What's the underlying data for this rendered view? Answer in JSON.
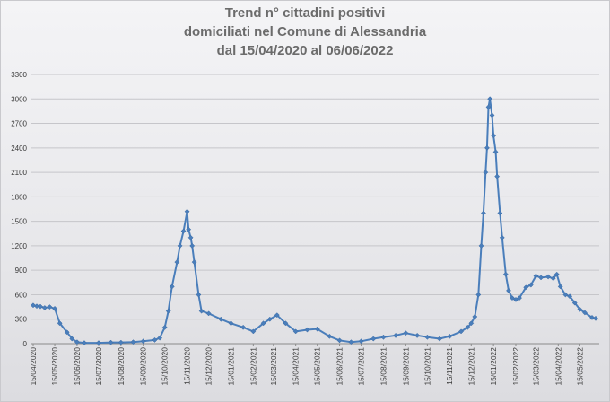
{
  "chart_data": {
    "type": "line",
    "title": [
      "Trend n° cittadini positivi",
      "domiciliati nel Comune di Alessandria",
      "dal 15/04/2020 al 06/06/2022"
    ],
    "xlabel": "",
    "ylabel": "",
    "ylim": [
      0,
      3300
    ],
    "yticks": [
      0,
      300,
      600,
      900,
      1200,
      1500,
      1800,
      2100,
      2400,
      2700,
      3000,
      3300
    ],
    "xticks": [
      "15/04/2020",
      "15/05/2020",
      "15/06/2020",
      "15/07/2020",
      "15/08/2020",
      "15/09/2020",
      "15/10/2020",
      "15/11/2020",
      "15/12/2020",
      "15/01/2021",
      "15/02/2021",
      "15/03/2021",
      "15/04/2021",
      "15/05/2021",
      "15/06/2021",
      "15/07/2021",
      "15/08/2021",
      "15/09/2021",
      "15/10/2021",
      "15/11/2021",
      "15/12/2021",
      "15/01/2022",
      "15/02/2022",
      "15/03/2022",
      "15/04/2022",
      "15/05/2022"
    ],
    "grid": "horizontal",
    "legend": "none",
    "series_color": "#4a7ebb",
    "series": [
      {
        "x": [
          "15/04/2020",
          "20/04/2020",
          "25/04/2020",
          "01/05/2020",
          "08/05/2020",
          "15/05/2020",
          "22/05/2020",
          "01/06/2020",
          "08/06/2020",
          "15/06/2020",
          "25/06/2020",
          "15/07/2020",
          "01/08/2020",
          "15/08/2020",
          "01/09/2020",
          "15/09/2020",
          "01/10/2020",
          "08/10/2020",
          "15/10/2020",
          "20/10/2020",
          "25/10/2020",
          "01/11/2020",
          "05/11/2020",
          "10/11/2020",
          "15/11/2020",
          "17/11/2020",
          "20/11/2020",
          "22/11/2020",
          "25/11/2020",
          "01/12/2020",
          "05/12/2020",
          "15/12/2020",
          "01/01/2021",
          "15/01/2021",
          "01/02/2021",
          "15/02/2021",
          "01/03/2021",
          "10/03/2021",
          "20/03/2021",
          "01/04/2021",
          "15/04/2021",
          "01/05/2021",
          "15/05/2021",
          "01/06/2021",
          "15/06/2021",
          "01/07/2021",
          "15/07/2021",
          "01/08/2021",
          "15/08/2021",
          "01/09/2021",
          "15/09/2021",
          "01/10/2021",
          "15/10/2021",
          "01/11/2021",
          "15/11/2021",
          "01/12/2021",
          "10/12/2021",
          "15/12/2021",
          "20/12/2021",
          "25/12/2021",
          "29/12/2021",
          "01/01/2022",
          "04/01/2022",
          "06/01/2022",
          "08/01/2022",
          "10/01/2022",
          "13/01/2022",
          "15/01/2022",
          "18/01/2022",
          "20/01/2022",
          "24/01/2022",
          "27/01/2022",
          "01/02/2022",
          "05/02/2022",
          "10/02/2022",
          "15/02/2022",
          "20/02/2022",
          "01/03/2022",
          "08/03/2022",
          "15/03/2022",
          "22/03/2022",
          "01/04/2022",
          "08/04/2022",
          "13/04/2022",
          "18/04/2022",
          "25/04/2022",
          "01/05/2022",
          "08/05/2022",
          "15/05/2022",
          "22/05/2022",
          "01/06/2022",
          "06/06/2022"
        ],
        "values": [
          470,
          460,
          455,
          440,
          450,
          430,
          250,
          140,
          60,
          20,
          10,
          10,
          15,
          15,
          20,
          30,
          45,
          70,
          200,
          400,
          700,
          1000,
          1200,
          1380,
          1620,
          1400,
          1300,
          1200,
          1000,
          600,
          400,
          370,
          300,
          250,
          200,
          150,
          250,
          300,
          350,
          250,
          150,
          170,
          180,
          90,
          40,
          20,
          30,
          60,
          80,
          100,
          130,
          100,
          80,
          60,
          90,
          150,
          200,
          250,
          330,
          600,
          1200,
          1600,
          2100,
          2400,
          2900,
          3000,
          2800,
          2550,
          2350,
          2050,
          1600,
          1300,
          850,
          650,
          560,
          540,
          560,
          690,
          720,
          830,
          810,
          820,
          800,
          850,
          700,
          600,
          580,
          500,
          420,
          380,
          320,
          310
        ]
      }
    ]
  }
}
